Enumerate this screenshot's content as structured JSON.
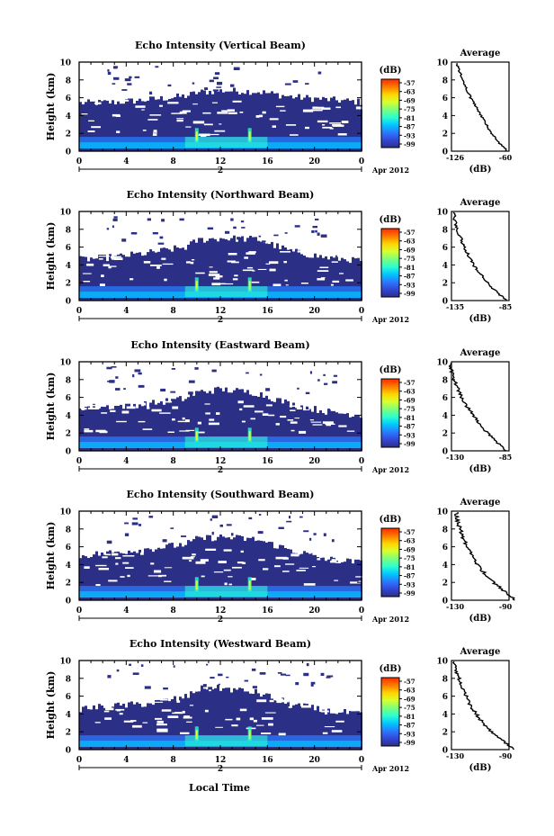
{
  "figure": {
    "xlabel": "Local Time",
    "date_label": "Apr 2012",
    "day_label": "2",
    "ylabel": "Height (km)",
    "colorbar_unit": "(dB)",
    "colorbar_ticks": [
      "-57",
      "-63",
      "-69",
      "-75",
      "-81",
      "-87",
      "-93",
      "-99"
    ],
    "colorbar_colors": [
      "#ff2a00",
      "#ff7a00",
      "#ffd400",
      "#d8ff2e",
      "#7dff7a",
      "#2dffd0",
      "#00c8ff",
      "#2a7bff",
      "#3446d6",
      "#2b2f86"
    ],
    "background_color": "#2b2f86",
    "x_ticks": [
      "0",
      "4",
      "8",
      "12",
      "16",
      "20",
      "0"
    ],
    "y_ticks": [
      "0",
      "2",
      "4",
      "6",
      "8",
      "10"
    ],
    "profile_title": "Average",
    "profile_unit": "(dB)"
  },
  "chart_data": [
    {
      "type": "heatmap",
      "title": "Echo Intensity (Vertical Beam)",
      "xlabel": "Local Time",
      "ylabel": "Height (km)",
      "xlim": [
        0,
        24
      ],
      "ylim": [
        0,
        10
      ],
      "colorbar_range_db": [
        -99,
        -57
      ],
      "echo_top_km": {
        "x": [
          0,
          3,
          6,
          9,
          10,
          12,
          15,
          18,
          21,
          24
        ],
        "y": [
          5.4,
          5.5,
          5.8,
          6.2,
          6.6,
          6.8,
          6.7,
          6.1,
          5.8,
          5.5
        ]
      },
      "strong_echo_layer_km": [
        0.3,
        1.2
      ],
      "profile": {
        "title": "Average",
        "xlim": [
          -126,
          -60
        ],
        "xticks": [
          "-126",
          "-60"
        ],
        "xlabel": "(dB)",
        "height_km": [
          0,
          1,
          2,
          3,
          4,
          5,
          6,
          7,
          8,
          9,
          10
        ],
        "power_db": [
          -62,
          -72,
          -80,
          -86,
          -92,
          -98,
          -104,
          -109,
          -113,
          -117,
          -120
        ]
      }
    },
    {
      "type": "heatmap",
      "title": "Echo Intensity (Northward Beam)",
      "xlabel": "Local Time",
      "ylabel": "Height (km)",
      "xlim": [
        0,
        24
      ],
      "ylim": [
        0,
        10
      ],
      "colorbar_range_db": [
        -99,
        -57
      ],
      "echo_top_km": {
        "x": [
          0,
          3,
          6,
          9,
          10,
          12,
          15,
          18,
          21,
          24
        ],
        "y": [
          4.6,
          4.9,
          5.4,
          6.0,
          6.8,
          7.0,
          6.9,
          5.5,
          4.8,
          4.5
        ]
      },
      "strong_echo_layer_km": [
        0.3,
        1.2
      ],
      "profile": {
        "title": "Average",
        "xlim": [
          -135,
          -85
        ],
        "xticks": [
          "-135",
          "-85"
        ],
        "xlabel": "(dB)",
        "height_km": [
          0,
          1,
          2,
          3,
          4,
          5,
          6,
          7,
          8,
          9,
          10
        ],
        "power_db": [
          -87,
          -96,
          -104,
          -110,
          -116,
          -120,
          -124,
          -127,
          -130,
          -132,
          -133
        ]
      }
    },
    {
      "type": "heatmap",
      "title": "Echo Intensity (Eastward Beam)",
      "xlabel": "Local Time",
      "ylabel": "Height (km)",
      "xlim": [
        0,
        24
      ],
      "ylim": [
        0,
        10
      ],
      "colorbar_range_db": [
        -99,
        -57
      ],
      "echo_top_km": {
        "x": [
          0,
          3,
          6,
          9,
          10,
          12,
          15,
          18,
          21,
          24
        ],
        "y": [
          4.9,
          5.0,
          5.3,
          5.9,
          6.6,
          6.9,
          6.5,
          5.2,
          4.4,
          4.0
        ]
      },
      "strong_echo_layer_km": [
        0.3,
        1.2
      ],
      "profile": {
        "title": "Average",
        "xlim": [
          -130,
          -85
        ],
        "xticks": [
          "-130",
          "-85"
        ],
        "xlabel": "(dB)",
        "height_km": [
          0,
          1,
          2,
          3,
          4,
          5,
          6,
          7,
          8,
          9,
          10
        ],
        "power_db": [
          -87,
          -95,
          -102,
          -108,
          -113,
          -118,
          -122,
          -125,
          -128,
          -130,
          -131
        ]
      }
    },
    {
      "type": "heatmap",
      "title": "Echo Intensity (Southward Beam)",
      "xlabel": "Local Time",
      "ylabel": "Height (km)",
      "xlim": [
        0,
        24
      ],
      "ylim": [
        0,
        10
      ],
      "colorbar_range_db": [
        -99,
        -57
      ],
      "echo_top_km": {
        "x": [
          0,
          3,
          6,
          9,
          10,
          12,
          15,
          18,
          21,
          24
        ],
        "y": [
          5.0,
          5.4,
          5.8,
          6.3,
          6.9,
          7.1,
          6.8,
          5.6,
          4.6,
          4.2
        ]
      },
      "strong_echo_layer_km": [
        0.3,
        1.2
      ],
      "profile": {
        "title": "Average",
        "xlim": [
          -130,
          -90
        ],
        "xticks": [
          "-130",
          "-90"
        ],
        "xlabel": "(dB)",
        "height_km": [
          0,
          1,
          2,
          3,
          4,
          5,
          6,
          7,
          8,
          9,
          10
        ],
        "power_db": [
          -85,
          -93,
          -101,
          -107,
          -112,
          -116,
          -119,
          -122,
          -124,
          -126,
          -127
        ]
      }
    },
    {
      "type": "heatmap",
      "title": "Echo Intensity (Westward Beam)",
      "xlabel": "Local Time",
      "ylabel": "Height (km)",
      "xlim": [
        0,
        24
      ],
      "ylim": [
        0,
        10
      ],
      "colorbar_range_db": [
        -99,
        -57
      ],
      "echo_top_km": {
        "x": [
          0,
          3,
          6,
          9,
          10,
          12,
          15,
          18,
          21,
          24
        ],
        "y": [
          4.6,
          4.9,
          5.2,
          5.9,
          6.8,
          6.9,
          6.4,
          5.1,
          4.3,
          4.0
        ]
      },
      "strong_echo_layer_km": [
        0.3,
        1.2
      ],
      "profile": {
        "title": "Average",
        "xlim": [
          -130,
          -90
        ],
        "xticks": [
          "-130",
          "-90"
        ],
        "xlabel": "(dB)",
        "height_km": [
          0,
          1,
          2,
          3,
          4,
          5,
          6,
          7,
          8,
          9,
          10
        ],
        "power_db": [
          -86,
          -94,
          -102,
          -108,
          -113,
          -117,
          -120,
          -123,
          -125,
          -127,
          -128
        ]
      }
    }
  ]
}
